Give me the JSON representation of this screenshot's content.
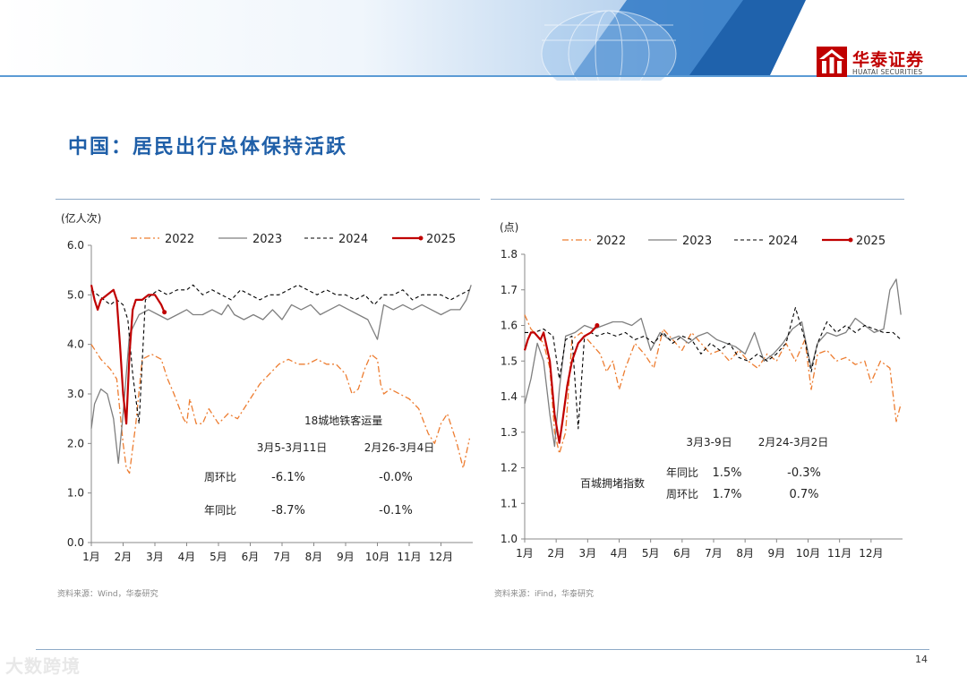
{
  "brand": {
    "name": "华泰证券",
    "sub": "HUATAI SECURITIES"
  },
  "page_title": "中国：居民出行总体保持活跃",
  "page_number": "14",
  "watermark": "大数跨境",
  "colors": {
    "y2022": "#ed7d31",
    "y2023": "#7f7f7f",
    "y2024": "#000000",
    "y2025": "#c00000",
    "title": "#1f5fa8"
  },
  "chart_data": [
    {
      "type": "line",
      "title": "",
      "unit_label": "(亿人次)",
      "x_ticks": [
        "1月",
        "2月",
        "3月",
        "4月",
        "5月",
        "6月",
        "7月",
        "8月",
        "9月",
        "10月",
        "11月",
        "12月"
      ],
      "xlim": [
        1,
        13
      ],
      "ylim": [
        0,
        6
      ],
      "y_ticks": [
        "0.0",
        "1.0",
        "2.0",
        "3.0",
        "4.0",
        "5.0",
        "6.0"
      ],
      "legend": [
        "2022",
        "2023",
        "2024",
        "2025"
      ],
      "legend_position": "top",
      "series": [
        {
          "name": "2022",
          "x": [
            1.0,
            1.3,
            1.6,
            1.8,
            2.0,
            2.1,
            2.2,
            2.4,
            2.6,
            2.9,
            3.2,
            3.4,
            3.6,
            3.9,
            4.0,
            4.1,
            4.3,
            4.5,
            4.7,
            5.0,
            5.3,
            5.6,
            5.8,
            6.0,
            6.3,
            6.6,
            6.9,
            7.2,
            7.5,
            7.8,
            8.1,
            8.4,
            8.7,
            9.0,
            9.2,
            9.4,
            9.6,
            9.8,
            10.0,
            10.1,
            10.2,
            10.4,
            10.7,
            11.0,
            11.3,
            11.6,
            11.8,
            12.0,
            12.2,
            12.5,
            12.7,
            12.9
          ],
          "y": [
            4.0,
            3.7,
            3.5,
            3.3,
            2.0,
            1.5,
            1.4,
            2.4,
            3.7,
            3.8,
            3.7,
            3.3,
            3.0,
            2.5,
            2.4,
            2.9,
            2.4,
            2.4,
            2.7,
            2.4,
            2.6,
            2.5,
            2.7,
            2.9,
            3.2,
            3.4,
            3.6,
            3.7,
            3.6,
            3.6,
            3.7,
            3.6,
            3.6,
            3.4,
            3.0,
            3.1,
            3.5,
            3.8,
            3.7,
            3.2,
            3.0,
            3.1,
            3.0,
            2.9,
            2.7,
            2.2,
            2.0,
            2.4,
            2.6,
            2.0,
            1.5,
            2.1
          ]
        },
        {
          "name": "2023",
          "x": [
            1.0,
            1.1,
            1.3,
            1.5,
            1.7,
            1.85,
            2.0,
            2.2,
            2.5,
            2.8,
            3.1,
            3.4,
            3.7,
            4.0,
            4.2,
            4.5,
            4.8,
            5.1,
            5.3,
            5.5,
            5.8,
            6.1,
            6.4,
            6.7,
            7.0,
            7.3,
            7.6,
            7.9,
            8.2,
            8.5,
            8.8,
            9.1,
            9.4,
            9.7,
            10.0,
            10.2,
            10.5,
            10.8,
            11.1,
            11.4,
            11.7,
            12.0,
            12.3,
            12.6,
            12.8,
            12.95
          ],
          "y": [
            2.3,
            2.8,
            3.1,
            3.0,
            2.5,
            1.6,
            2.6,
            4.2,
            4.6,
            4.7,
            4.6,
            4.5,
            4.6,
            4.7,
            4.6,
            4.6,
            4.7,
            4.6,
            4.8,
            4.6,
            4.5,
            4.6,
            4.5,
            4.7,
            4.5,
            4.8,
            4.7,
            4.8,
            4.6,
            4.7,
            4.8,
            4.7,
            4.6,
            4.5,
            4.1,
            4.8,
            4.7,
            4.8,
            4.7,
            4.8,
            4.7,
            4.6,
            4.7,
            4.7,
            4.9,
            5.2
          ]
        },
        {
          "name": "2024",
          "x": [
            1.0,
            1.2,
            1.4,
            1.6,
            1.8,
            2.0,
            2.15,
            2.3,
            2.5,
            2.7,
            2.9,
            3.1,
            3.4,
            3.7,
            4.0,
            4.2,
            4.5,
            4.8,
            5.1,
            5.4,
            5.7,
            6.0,
            6.3,
            6.6,
            6.9,
            7.2,
            7.5,
            7.8,
            8.1,
            8.4,
            8.7,
            9.0,
            9.3,
            9.6,
            9.9,
            10.2,
            10.5,
            10.8,
            11.1,
            11.4,
            11.7,
            12.0,
            12.3,
            12.6,
            12.9
          ],
          "y": [
            5.1,
            5.0,
            4.9,
            4.8,
            4.9,
            4.8,
            4.5,
            3.4,
            2.4,
            4.9,
            5.0,
            5.1,
            5.0,
            5.1,
            5.1,
            5.2,
            5.0,
            5.1,
            5.0,
            4.9,
            5.1,
            5.0,
            4.9,
            5.0,
            5.0,
            5.1,
            5.2,
            5.1,
            5.0,
            5.1,
            5.0,
            5.0,
            4.9,
            5.0,
            4.8,
            5.0,
            5.0,
            5.1,
            4.9,
            5.0,
            5.0,
            5.0,
            4.9,
            5.0,
            5.1
          ]
        },
        {
          "name": "2025",
          "x": [
            1.0,
            1.1,
            1.2,
            1.3,
            1.5,
            1.7,
            1.8,
            1.9,
            2.0,
            2.1,
            2.2,
            2.3,
            2.4,
            2.6,
            2.8,
            3.0,
            3.2,
            3.3
          ],
          "y": [
            5.2,
            4.9,
            4.7,
            4.9,
            5.0,
            5.1,
            4.9,
            4.0,
            3.0,
            2.4,
            3.8,
            4.7,
            4.9,
            4.9,
            5.0,
            5.0,
            4.8,
            4.65
          ]
        }
      ],
      "annotation": {
        "title": "18城地铁客运量",
        "col1": "3月5-3月11日",
        "col2": "2月26-3月4日",
        "row1_label": "周环比",
        "row1_v1": "-6.1%",
        "row1_v2": "-0.0%",
        "row2_label": "年同比",
        "row2_v1": "-8.7%",
        "row2_v2": "-0.1%"
      },
      "source": "资料来源：Wind，华泰研究"
    },
    {
      "type": "line",
      "title": "",
      "unit_label": "(点)",
      "x_ticks": [
        "1月",
        "2月",
        "3月",
        "4月",
        "5月",
        "6月",
        "7月",
        "8月",
        "9月",
        "10月",
        "11月",
        "12月"
      ],
      "xlim": [
        1,
        13
      ],
      "ylim": [
        1.0,
        1.8
      ],
      "y_ticks": [
        "1.0",
        "1.1",
        "1.2",
        "1.3",
        "1.4",
        "1.5",
        "1.6",
        "1.7",
        "1.8"
      ],
      "legend": [
        "2022",
        "2023",
        "2024",
        "2025"
      ],
      "legend_position": "top",
      "series": [
        {
          "name": "2022",
          "x": [
            1.0,
            1.2,
            1.4,
            1.6,
            1.8,
            1.95,
            2.1,
            2.3,
            2.5,
            2.8,
            3.1,
            3.4,
            3.6,
            3.8,
            4.0,
            4.2,
            4.5,
            4.8,
            5.1,
            5.4,
            5.7,
            6.0,
            6.3,
            6.6,
            6.9,
            7.2,
            7.5,
            7.8,
            8.1,
            8.4,
            8.7,
            9.0,
            9.3,
            9.6,
            9.9,
            10.1,
            10.3,
            10.6,
            10.9,
            11.2,
            11.5,
            11.8,
            12.0,
            12.3,
            12.6,
            12.8,
            12.95
          ],
          "y": [
            1.63,
            1.59,
            1.57,
            1.55,
            1.48,
            1.3,
            1.24,
            1.3,
            1.56,
            1.58,
            1.55,
            1.52,
            1.47,
            1.5,
            1.42,
            1.48,
            1.55,
            1.52,
            1.48,
            1.59,
            1.56,
            1.53,
            1.58,
            1.55,
            1.52,
            1.53,
            1.5,
            1.53,
            1.5,
            1.48,
            1.52,
            1.5,
            1.55,
            1.5,
            1.56,
            1.42,
            1.52,
            1.53,
            1.5,
            1.51,
            1.49,
            1.5,
            1.44,
            1.5,
            1.48,
            1.33,
            1.38
          ]
        },
        {
          "name": "2023",
          "x": [
            1.0,
            1.2,
            1.4,
            1.6,
            1.8,
            1.95,
            2.1,
            2.3,
            2.6,
            2.9,
            3.2,
            3.5,
            3.8,
            4.1,
            4.4,
            4.7,
            5.0,
            5.3,
            5.6,
            5.9,
            6.2,
            6.5,
            6.8,
            7.1,
            7.4,
            7.7,
            8.0,
            8.3,
            8.6,
            8.9,
            9.2,
            9.5,
            9.8,
            10.1,
            10.3,
            10.6,
            10.9,
            11.2,
            11.5,
            11.8,
            12.1,
            12.4,
            12.6,
            12.8,
            12.95
          ],
          "y": [
            1.38,
            1.45,
            1.55,
            1.5,
            1.35,
            1.26,
            1.42,
            1.57,
            1.58,
            1.6,
            1.59,
            1.6,
            1.61,
            1.61,
            1.6,
            1.62,
            1.53,
            1.58,
            1.56,
            1.57,
            1.55,
            1.57,
            1.58,
            1.56,
            1.55,
            1.54,
            1.52,
            1.58,
            1.5,
            1.52,
            1.55,
            1.59,
            1.61,
            1.48,
            1.55,
            1.58,
            1.57,
            1.58,
            1.62,
            1.6,
            1.58,
            1.59,
            1.7,
            1.73,
            1.63
          ]
        },
        {
          "name": "2024",
          "x": [
            1.0,
            1.3,
            1.6,
            1.9,
            2.1,
            2.3,
            2.5,
            2.7,
            2.9,
            3.1,
            3.3,
            3.6,
            3.9,
            4.2,
            4.5,
            4.8,
            5.1,
            5.4,
            5.7,
            6.0,
            6.3,
            6.6,
            6.9,
            7.2,
            7.5,
            7.8,
            8.1,
            8.4,
            8.7,
            9.0,
            9.3,
            9.6,
            9.9,
            10.1,
            10.3,
            10.6,
            10.9,
            11.2,
            11.5,
            11.8,
            12.1,
            12.4,
            12.7,
            12.95
          ],
          "y": [
            1.58,
            1.58,
            1.59,
            1.57,
            1.45,
            1.56,
            1.57,
            1.31,
            1.57,
            1.58,
            1.57,
            1.58,
            1.57,
            1.58,
            1.56,
            1.57,
            1.55,
            1.58,
            1.55,
            1.57,
            1.56,
            1.52,
            1.55,
            1.53,
            1.55,
            1.51,
            1.5,
            1.52,
            1.5,
            1.52,
            1.55,
            1.65,
            1.56,
            1.47,
            1.55,
            1.61,
            1.58,
            1.6,
            1.58,
            1.6,
            1.59,
            1.58,
            1.58,
            1.56
          ]
        },
        {
          "name": "2025",
          "x": [
            1.0,
            1.1,
            1.2,
            1.3,
            1.4,
            1.5,
            1.6,
            1.8,
            1.95,
            2.1,
            2.2,
            2.35,
            2.5,
            2.7,
            2.9,
            3.1,
            3.3
          ],
          "y": [
            1.53,
            1.56,
            1.58,
            1.58,
            1.57,
            1.56,
            1.58,
            1.5,
            1.35,
            1.27,
            1.33,
            1.43,
            1.5,
            1.55,
            1.57,
            1.58,
            1.6
          ]
        }
      ],
      "annotation": {
        "title": "百城拥堵指数",
        "col1": "3月3-9日",
        "col2": "2月24-3月2日",
        "row1_label": "年同比",
        "row1_v1": "1.5%",
        "row1_v2": "-0.3%",
        "row2_label": "周环比",
        "row2_v1": "1.7%",
        "row2_v2": "0.7%"
      },
      "source": "资料来源：iFind，华泰研究"
    }
  ]
}
